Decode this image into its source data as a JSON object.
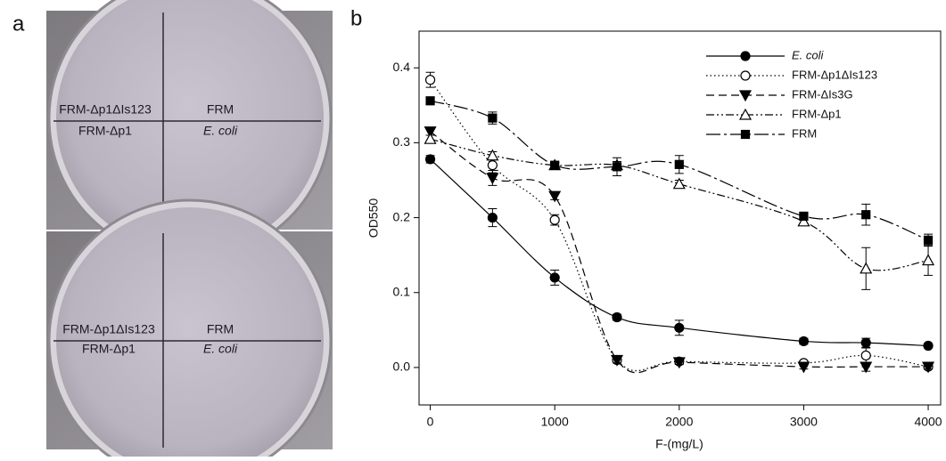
{
  "panel_labels": [
    "a",
    "b"
  ],
  "plates": [
    {
      "labels": [
        "FRM-Δp1ΔIs123",
        "FRM",
        "FRM-Δp1",
        "E. coli"
      ]
    },
    {
      "labels": [
        "FRM-Δp1ΔIs123",
        "FRM",
        "FRM-Δp1",
        "E. coli"
      ]
    }
  ],
  "chart_data": {
    "type": "line",
    "x_label": "F-(mg/L)",
    "y_label": "OD550",
    "x": [
      0,
      500,
      1000,
      1500,
      2000,
      3000,
      3500,
      4000
    ],
    "xlim": [
      -90,
      4100
    ],
    "xticks": [
      0,
      1000,
      2000,
      3000,
      4000
    ],
    "ylim": [
      -0.05,
      0.449
    ],
    "yticks": [
      {
        "value": 0,
        "label": "0.0"
      },
      0.1,
      0.2,
      0.3,
      0.4
    ],
    "legend": "upper right",
    "series": [
      {
        "name": "E. coli",
        "color": "#000000",
        "marker": "circle-filled",
        "line_style": "solid",
        "values": [
          0.278,
          0.2,
          0.12,
          0.067,
          0.053,
          0.035,
          0.033,
          0.029
        ],
        "errors": [
          0.005,
          0.012,
          0.01,
          0.004,
          0.01,
          0.004,
          0.006,
          0.003
        ]
      },
      {
        "name": "FRM-Δp1ΔIs123",
        "color": "#000000",
        "marker": "circle-open",
        "line_style": "dotted",
        "values": [
          0.384,
          0.27,
          0.197,
          0.01,
          0.008,
          0.006,
          0.016,
          0.001
        ],
        "errors": [
          0.01,
          0.01,
          0.007,
          0.004,
          0.003,
          0.003,
          0.01,
          0.003
        ]
      },
      {
        "name": "FRM-ΔIs3G",
        "color": "#000000",
        "marker": "triangle-down-filled",
        "line_style": "dashed",
        "values": [
          0.315,
          0.253,
          0.229,
          0.01,
          0.007,
          0.001,
          0.001,
          0.001
        ],
        "errors": [
          0.005,
          0.01,
          0.005,
          0.004,
          0.003,
          0.003,
          0.006,
          0.003
        ]
      },
      {
        "name": "FRM-Δp1",
        "color": "#000000",
        "marker": "triangle-up-open",
        "line_style": "dash-dot-dot",
        "values": [
          0.305,
          0.283,
          0.27,
          0.27,
          0.245,
          0.195,
          0.132,
          0.143
        ],
        "errors": [
          0.005,
          0.005,
          0.004,
          0.005,
          0.005,
          0.005,
          0.028,
          0.02
        ]
      },
      {
        "name": "FRM",
        "color": "#000000",
        "marker": "square-filled",
        "line_style": "long-dash-dot",
        "values": [
          0.356,
          0.333,
          0.27,
          0.268,
          0.271,
          0.202,
          0.204,
          0.17
        ],
        "errors": [
          0.004,
          0.008,
          0.004,
          0.012,
          0.012,
          0.005,
          0.014,
          0.008
        ]
      }
    ]
  }
}
